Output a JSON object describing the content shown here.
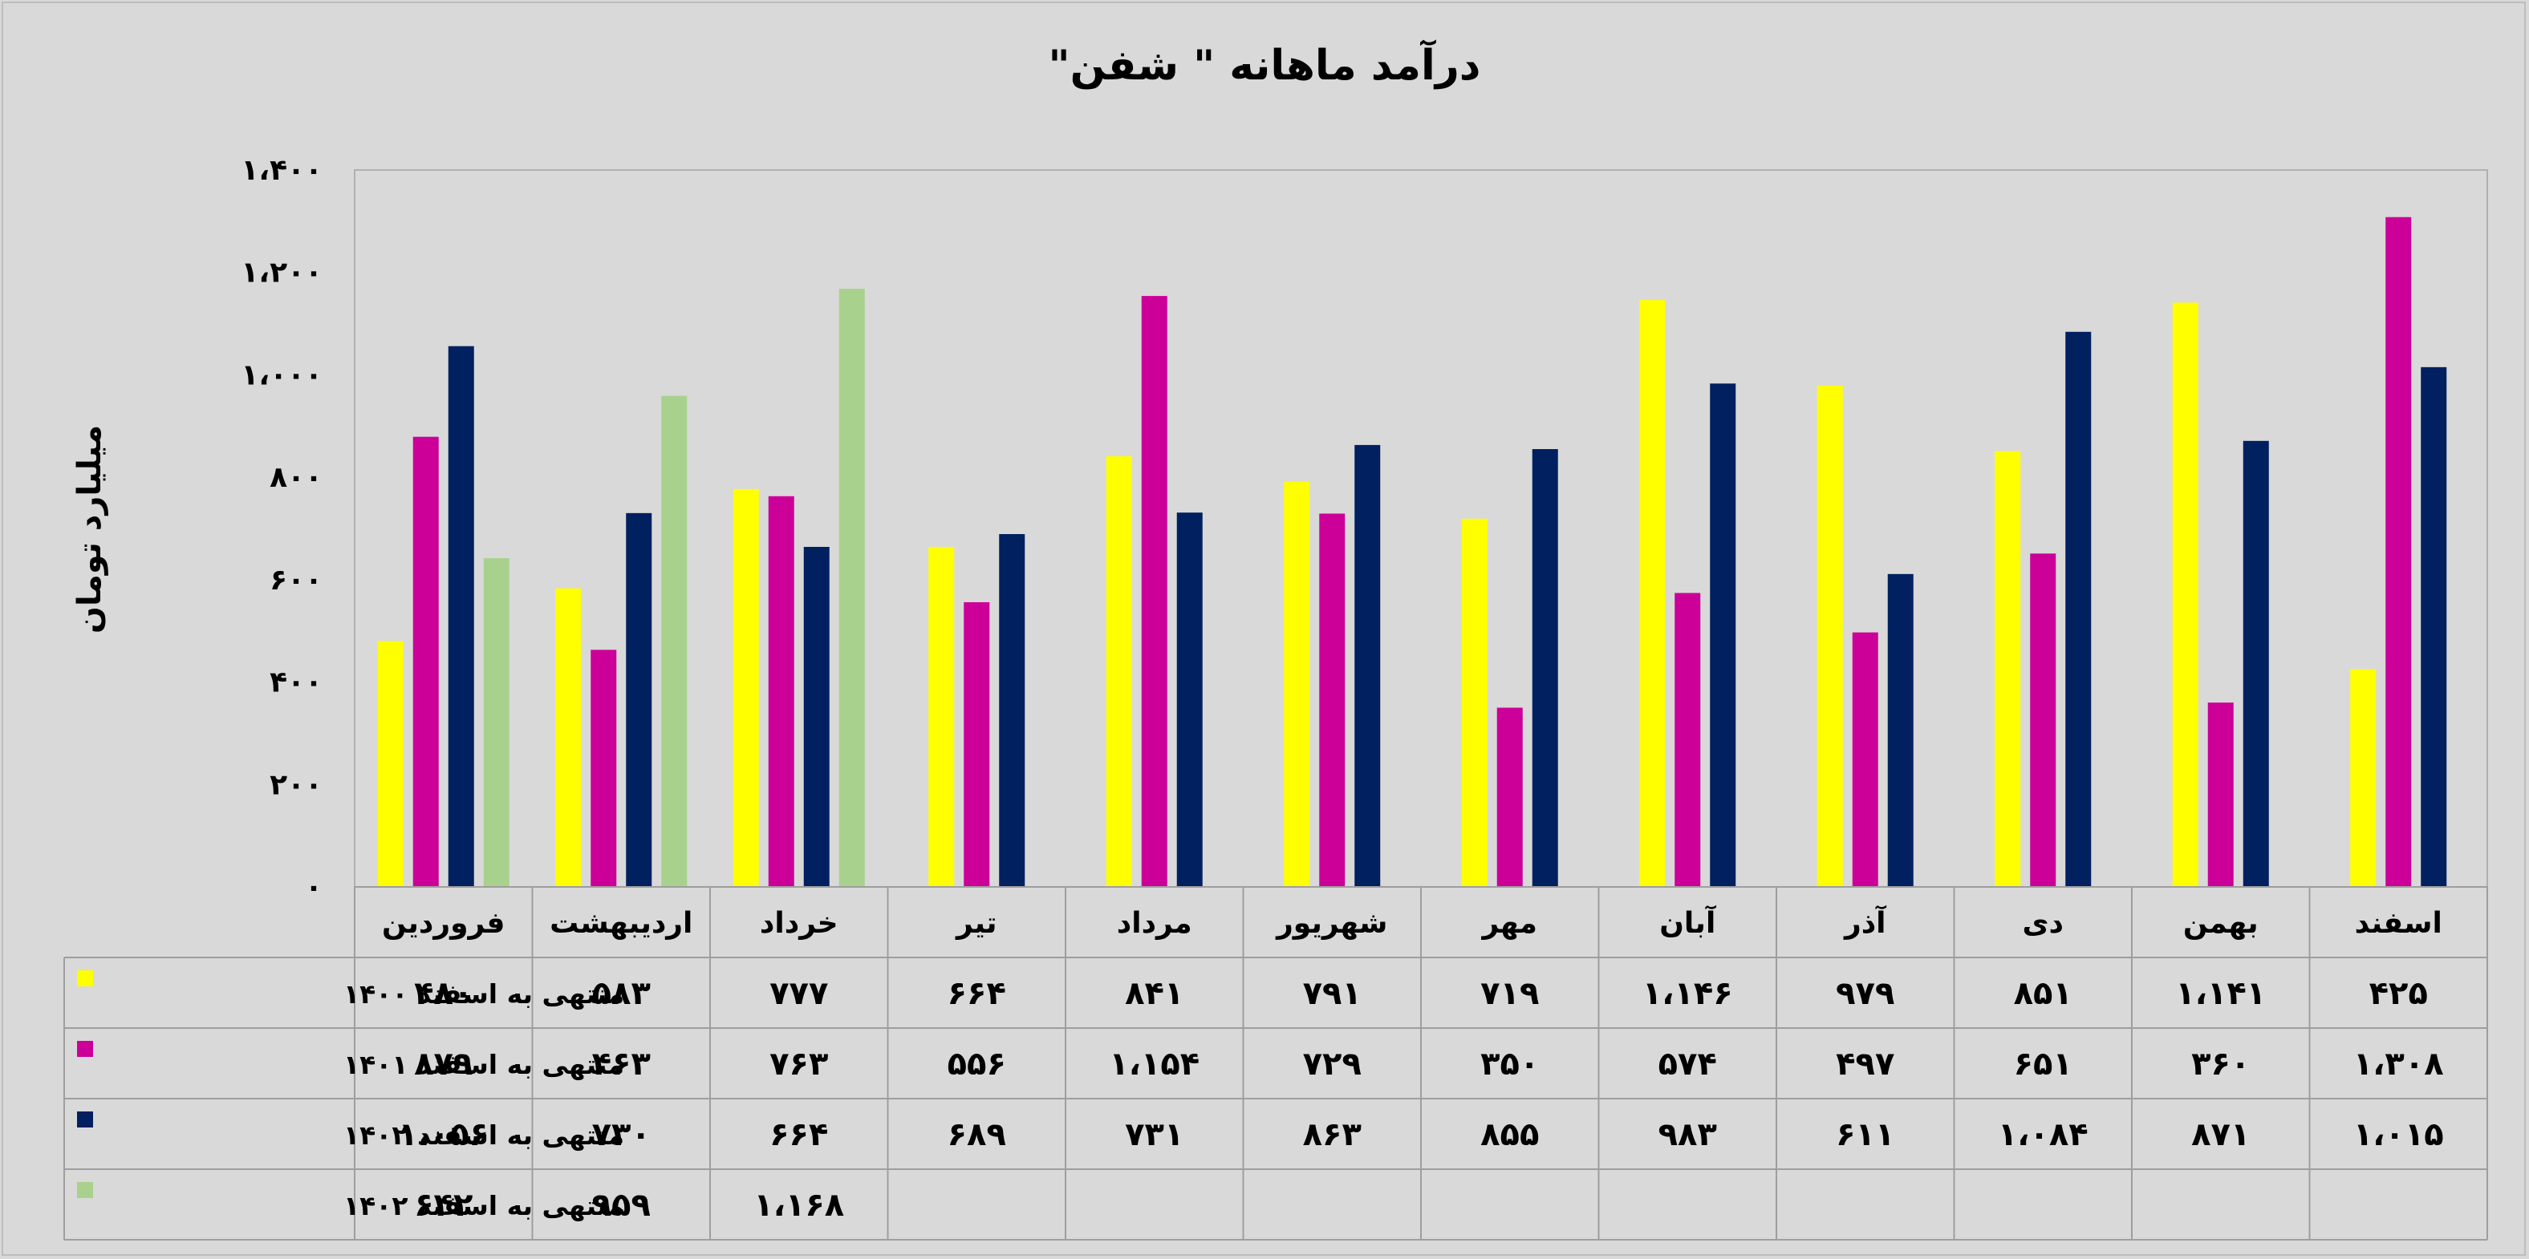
{
  "chart_data": {
    "type": "bar",
    "title": "درآمد ماهانه \" شفن\"",
    "ylabel": "میلیارد تومان",
    "ylim": [
      0,
      1400
    ],
    "y_ticks": [
      "۰",
      "۲۰۰",
      "۴۰۰",
      "۶۰۰",
      "۸۰۰",
      "۱،۰۰۰",
      "۱،۲۰۰",
      "۱،۴۰۰"
    ],
    "grid": false,
    "legend": "table-left",
    "categories": [
      "فروردین",
      "اردیبهشت",
      "خرداد",
      "تیر",
      "مرداد",
      "شهریور",
      "مهر",
      "آبان",
      "آذر",
      "دی",
      "بهمن",
      "اسفند"
    ],
    "series": [
      {
        "name": "منتهی به اسفند ۱۴۰۰",
        "color": "#ffff00",
        "values": [
          480,
          583,
          777,
          664,
          841,
          791,
          719,
          1146,
          979,
          851,
          1141,
          425
        ],
        "labels": [
          "۴۸۰",
          "۵۸۳",
          "۷۷۷",
          "۶۶۴",
          "۸۴۱",
          "۷۹۱",
          "۷۱۹",
          "۱،۱۴۶",
          "۹۷۹",
          "۸۵۱",
          "۱،۱۴۱",
          "۴۲۵"
        ]
      },
      {
        "name": "منتهی به اسفند ۱۴۰۱",
        "color": "#cc0099",
        "values": [
          879,
          463,
          763,
          556,
          1154,
          729,
          350,
          574,
          497,
          651,
          360,
          1308
        ],
        "labels": [
          "۸۷۹",
          "۴۶۳",
          "۷۶۳",
          "۵۵۶",
          "۱،۱۵۴",
          "۷۲۹",
          "۳۵۰",
          "۵۷۴",
          "۴۹۷",
          "۶۵۱",
          "۳۶۰",
          "۱،۳۰۸"
        ]
      },
      {
        "name": "منتهی به اسفند ۱۴۰۲",
        "color": "#002060",
        "values": [
          1056,
          730,
          664,
          689,
          731,
          863,
          855,
          983,
          611,
          1084,
          871,
          1015
        ],
        "labels": [
          "۱،۰۵۶",
          "۷۳۰",
          "۶۶۴",
          "۶۸۹",
          "۷۳۱",
          "۸۶۳",
          "۸۵۵",
          "۹۸۳",
          "۶۱۱",
          "۱،۰۸۴",
          "۸۷۱",
          "۱،۰۱۵"
        ]
      },
      {
        "name": "منتهی به اسفند ۱۴۰۲",
        "color": "#a9d18e",
        "values": [
          642,
          959,
          1168,
          null,
          null,
          null,
          null,
          null,
          null,
          null,
          null,
          null
        ],
        "labels": [
          "۶۴۲",
          "۹۵۹",
          "۱،۱۶۸",
          "",
          "",
          "",
          "",
          "",
          "",
          "",
          "",
          ""
        ]
      }
    ]
  }
}
